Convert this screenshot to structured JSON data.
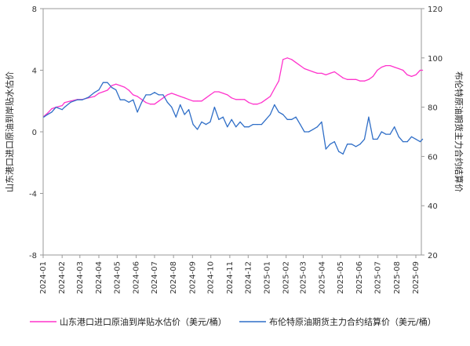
{
  "chart_data": {
    "type": "line",
    "x_ticks": [
      "2024-01",
      "2024-02",
      "2024-03",
      "2024-04",
      "2024-05",
      "2024-06",
      "2024-07",
      "2024-08",
      "2024-09",
      "2024-10",
      "2024-11",
      "2024-12",
      "2025-01",
      "2025-02",
      "2025-03",
      "2025-04",
      "2025-05",
      "2025-06",
      "2025-07",
      "2025-08",
      "2025-09"
    ],
    "left_axis": {
      "label": "山东港口进口原油到岸贴水估价",
      "ylim": [
        -8,
        8
      ],
      "ticks": [
        "8",
        "4",
        "0",
        "-4",
        "-8"
      ]
    },
    "right_axis": {
      "label": "布伦特原油期货主力合约结算价",
      "ylim": [
        20,
        120
      ],
      "ticks": [
        "120",
        "100",
        "80",
        "60",
        "40",
        "20"
      ]
    },
    "grid": false,
    "legend_position": "bottom",
    "series": [
      {
        "name": "山东港口进口原油到岸贴水估价（美元/桶）",
        "axis": "left",
        "color": "#ff33cc",
        "points": [
          [
            "2024-01-02",
            1.0
          ],
          [
            "2024-01-08",
            1.2
          ],
          [
            "2024-01-15",
            1.5
          ],
          [
            "2024-01-22",
            1.6
          ],
          [
            "2024-02-01",
            1.7
          ],
          [
            "2024-02-05",
            1.9
          ],
          [
            "2024-02-15",
            2.0
          ],
          [
            "2024-02-26",
            2.1
          ],
          [
            "2024-03-05",
            2.1
          ],
          [
            "2024-03-15",
            2.2
          ],
          [
            "2024-03-25",
            2.3
          ],
          [
            "2024-04-01",
            2.5
          ],
          [
            "2024-04-08",
            2.6
          ],
          [
            "2024-04-15",
            2.7
          ],
          [
            "2024-04-22",
            3.0
          ],
          [
            "2024-04-29",
            3.1
          ],
          [
            "2024-05-06",
            3.0
          ],
          [
            "2024-05-13",
            2.9
          ],
          [
            "2024-05-20",
            2.7
          ],
          [
            "2024-05-27",
            2.4
          ],
          [
            "2024-06-03",
            2.3
          ],
          [
            "2024-06-10",
            2.1
          ],
          [
            "2024-06-17",
            1.9
          ],
          [
            "2024-06-24",
            1.8
          ],
          [
            "2024-07-01",
            1.8
          ],
          [
            "2024-07-08",
            2.0
          ],
          [
            "2024-07-15",
            2.2
          ],
          [
            "2024-07-22",
            2.4
          ],
          [
            "2024-07-29",
            2.5
          ],
          [
            "2024-08-05",
            2.4
          ],
          [
            "2024-08-12",
            2.3
          ],
          [
            "2024-08-19",
            2.2
          ],
          [
            "2024-08-26",
            2.1
          ],
          [
            "2024-09-02",
            2.0
          ],
          [
            "2024-09-09",
            2.0
          ],
          [
            "2024-09-16",
            2.0
          ],
          [
            "2024-09-23",
            2.2
          ],
          [
            "2024-09-30",
            2.4
          ],
          [
            "2024-10-07",
            2.6
          ],
          [
            "2024-10-14",
            2.6
          ],
          [
            "2024-10-21",
            2.5
          ],
          [
            "2024-10-28",
            2.4
          ],
          [
            "2024-11-04",
            2.2
          ],
          [
            "2024-11-11",
            2.1
          ],
          [
            "2024-11-18",
            2.1
          ],
          [
            "2024-11-25",
            2.1
          ],
          [
            "2024-12-02",
            1.9
          ],
          [
            "2024-12-09",
            1.8
          ],
          [
            "2024-12-16",
            1.8
          ],
          [
            "2024-12-23",
            1.9
          ],
          [
            "2024-12-30",
            2.1
          ],
          [
            "2025-01-06",
            2.3
          ],
          [
            "2025-01-13",
            2.8
          ],
          [
            "2025-01-20",
            3.3
          ],
          [
            "2025-01-27",
            4.7
          ],
          [
            "2025-02-03",
            4.8
          ],
          [
            "2025-02-10",
            4.7
          ],
          [
            "2025-02-17",
            4.5
          ],
          [
            "2025-02-24",
            4.3
          ],
          [
            "2025-03-03",
            4.1
          ],
          [
            "2025-03-10",
            4.0
          ],
          [
            "2025-03-17",
            3.9
          ],
          [
            "2025-03-24",
            3.8
          ],
          [
            "2025-03-31",
            3.8
          ],
          [
            "2025-04-07",
            3.7
          ],
          [
            "2025-04-14",
            3.8
          ],
          [
            "2025-04-21",
            3.9
          ],
          [
            "2025-04-28",
            3.7
          ],
          [
            "2025-05-05",
            3.5
          ],
          [
            "2025-05-12",
            3.4
          ],
          [
            "2025-05-19",
            3.4
          ],
          [
            "2025-05-26",
            3.4
          ],
          [
            "2025-06-02",
            3.3
          ],
          [
            "2025-06-09",
            3.3
          ],
          [
            "2025-06-16",
            3.4
          ],
          [
            "2025-06-23",
            3.6
          ],
          [
            "2025-06-30",
            4.0
          ],
          [
            "2025-07-07",
            4.2
          ],
          [
            "2025-07-14",
            4.3
          ],
          [
            "2025-07-21",
            4.3
          ],
          [
            "2025-07-28",
            4.2
          ],
          [
            "2025-08-04",
            4.1
          ],
          [
            "2025-08-11",
            4.0
          ],
          [
            "2025-08-18",
            3.7
          ],
          [
            "2025-08-25",
            3.6
          ],
          [
            "2025-09-01",
            3.7
          ],
          [
            "2025-09-08",
            4.0
          ],
          [
            "2025-09-12",
            4.0
          ]
        ]
      },
      {
        "name": "布伦特原油期货主力合约结算价（美元/桶）",
        "axis": "right",
        "color": "#2f6ec7",
        "points": [
          [
            "2024-01-02",
            76
          ],
          [
            "2024-01-08",
            77
          ],
          [
            "2024-01-15",
            78
          ],
          [
            "2024-01-22",
            80
          ],
          [
            "2024-02-01",
            79
          ],
          [
            "2024-02-05",
            80
          ],
          [
            "2024-02-15",
            82
          ],
          [
            "2024-02-26",
            83
          ],
          [
            "2024-03-05",
            83
          ],
          [
            "2024-03-15",
            84
          ],
          [
            "2024-03-25",
            86
          ],
          [
            "2024-04-01",
            87
          ],
          [
            "2024-04-08",
            90
          ],
          [
            "2024-04-15",
            90
          ],
          [
            "2024-04-22",
            88
          ],
          [
            "2024-04-29",
            87
          ],
          [
            "2024-05-06",
            83
          ],
          [
            "2024-05-13",
            83
          ],
          [
            "2024-05-20",
            82
          ],
          [
            "2024-05-27",
            83
          ],
          [
            "2024-06-03",
            78
          ],
          [
            "2024-06-10",
            82
          ],
          [
            "2024-06-17",
            85
          ],
          [
            "2024-06-24",
            85
          ],
          [
            "2024-07-01",
            86
          ],
          [
            "2024-07-08",
            85
          ],
          [
            "2024-07-15",
            85
          ],
          [
            "2024-07-22",
            82
          ],
          [
            "2024-07-29",
            80
          ],
          [
            "2024-08-05",
            76
          ],
          [
            "2024-08-12",
            81
          ],
          [
            "2024-08-19",
            77
          ],
          [
            "2024-08-26",
            79
          ],
          [
            "2024-09-02",
            73
          ],
          [
            "2024-09-09",
            71
          ],
          [
            "2024-09-16",
            74
          ],
          [
            "2024-09-23",
            73
          ],
          [
            "2024-09-30",
            74
          ],
          [
            "2024-10-07",
            80
          ],
          [
            "2024-10-14",
            75
          ],
          [
            "2024-10-21",
            76
          ],
          [
            "2024-10-28",
            72
          ],
          [
            "2024-11-04",
            75
          ],
          [
            "2024-11-11",
            72
          ],
          [
            "2024-11-18",
            74
          ],
          [
            "2024-11-25",
            72
          ],
          [
            "2024-12-02",
            72
          ],
          [
            "2024-12-09",
            73
          ],
          [
            "2024-12-16",
            73
          ],
          [
            "2024-12-23",
            73
          ],
          [
            "2024-12-30",
            75
          ],
          [
            "2025-01-06",
            77
          ],
          [
            "2025-01-13",
            81
          ],
          [
            "2025-01-20",
            78
          ],
          [
            "2025-01-27",
            77
          ],
          [
            "2025-02-03",
            75
          ],
          [
            "2025-02-10",
            75
          ],
          [
            "2025-02-17",
            76
          ],
          [
            "2025-02-24",
            73
          ],
          [
            "2025-03-03",
            70
          ],
          [
            "2025-03-10",
            70
          ],
          [
            "2025-03-17",
            71
          ],
          [
            "2025-03-24",
            72
          ],
          [
            "2025-03-31",
            74
          ],
          [
            "2025-04-07",
            63
          ],
          [
            "2025-04-14",
            65
          ],
          [
            "2025-04-21",
            66
          ],
          [
            "2025-04-28",
            62
          ],
          [
            "2025-05-05",
            61
          ],
          [
            "2025-05-12",
            65
          ],
          [
            "2025-05-19",
            65
          ],
          [
            "2025-05-26",
            64
          ],
          [
            "2025-06-02",
            65
          ],
          [
            "2025-06-09",
            67
          ],
          [
            "2025-06-16",
            76
          ],
          [
            "2025-06-23",
            67
          ],
          [
            "2025-06-30",
            67
          ],
          [
            "2025-07-07",
            70
          ],
          [
            "2025-07-14",
            69
          ],
          [
            "2025-07-21",
            69
          ],
          [
            "2025-07-28",
            72
          ],
          [
            "2025-08-04",
            68
          ],
          [
            "2025-08-11",
            66
          ],
          [
            "2025-08-18",
            66
          ],
          [
            "2025-08-25",
            68
          ],
          [
            "2025-09-01",
            67
          ],
          [
            "2025-09-08",
            66
          ],
          [
            "2025-09-12",
            67
          ]
        ]
      }
    ]
  }
}
